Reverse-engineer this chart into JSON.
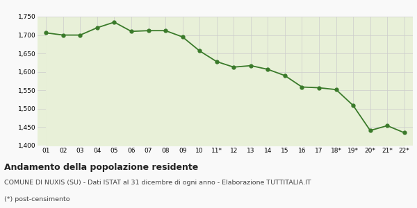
{
  "x_labels": [
    "01",
    "02",
    "03",
    "04",
    "05",
    "06",
    "07",
    "08",
    "09",
    "10",
    "11*",
    "12",
    "13",
    "14",
    "15",
    "16",
    "17",
    "18*",
    "19*",
    "20*",
    "21*",
    "22*"
  ],
  "y_values": [
    1706,
    1700,
    1700,
    1720,
    1735,
    1710,
    1712,
    1712,
    1695,
    1657,
    1628,
    1613,
    1617,
    1607,
    1590,
    1559,
    1557,
    1552,
    1509,
    1441,
    1454,
    1435
  ],
  "line_color": "#3a7a2a",
  "fill_color": "#e8f0d8",
  "marker_color": "#3a7a2a",
  "bg_color": "#f9f9f9",
  "grid_color": "#cccccc",
  "ylim": [
    1400,
    1750
  ],
  "yticks": [
    1400,
    1450,
    1500,
    1550,
    1600,
    1650,
    1700,
    1750
  ],
  "title": "Andamento della popolazione residente",
  "subtitle": "COMUNE DI NUXIS (SU) - Dati ISTAT al 31 dicembre di ogni anno - Elaborazione TUTTITALIA.IT",
  "footnote": "(*) post-censimento",
  "title_fontsize": 9,
  "subtitle_fontsize": 6.8,
  "footnote_fontsize": 6.8,
  "tick_fontsize": 6.5,
  "line_width": 1.3,
  "marker_size": 3.5
}
